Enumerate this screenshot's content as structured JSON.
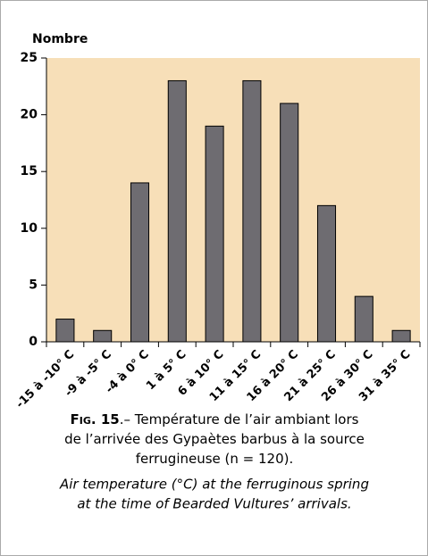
{
  "chart_data": {
    "type": "bar",
    "y_label": "Nombre",
    "categories": [
      "-15 à -10° C",
      "-9 à -5° C",
      "-4 à 0° C",
      "1 à 5° C",
      "6 à 10° C",
      "11 à 15° C",
      "16 à 20° C",
      "21 à 25° C",
      "26 à 30° C",
      "31 à 35° C"
    ],
    "values": [
      2,
      1,
      14,
      23,
      19,
      23,
      21,
      12,
      4,
      1
    ],
    "color": "#6e6c71",
    "background": "#f7dfb8",
    "ylim": [
      0,
      25
    ],
    "yticks": [
      0,
      5,
      10,
      15,
      20,
      25
    ],
    "caption": {
      "figure": "Fig. 15",
      "french": [
        ".– Température de l’air ambiant lors",
        "de l’arrivée des Gypaètes barbus à la source",
        "ferrugineuse (n = 120)."
      ],
      "english": [
        "Air temperature (°C) at the ferruginous spring",
        "at the time of Bearded Vultures’ arrivals."
      ]
    }
  }
}
